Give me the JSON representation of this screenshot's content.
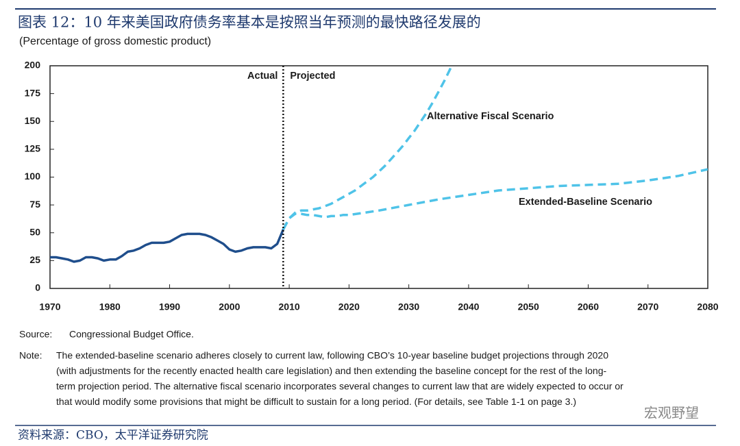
{
  "title": "图表 12：10 年来美国政府债务率基本是按照当年预测的最快路径发展的",
  "chart_data": {
    "type": "line",
    "subtitle": "(Percentage of gross domestic product)",
    "xlim": [
      1970,
      2080
    ],
    "ylim": [
      0,
      200
    ],
    "xticks": [
      1970,
      1980,
      1990,
      2000,
      2010,
      2020,
      2030,
      2040,
      2050,
      2060,
      2070,
      2080
    ],
    "yticks": [
      0,
      25,
      50,
      75,
      100,
      125,
      150,
      175,
      200
    ],
    "annotations": [
      "Actual",
      "Projected"
    ],
    "series": [
      {
        "color": "#1f4e8c",
        "dashed": false,
        "x": [
          1970,
          1971,
          1972,
          1973,
          1974,
          1975,
          1976,
          1977,
          1978,
          1979,
          1980,
          1981,
          1982,
          1983,
          1984,
          1985,
          1986,
          1987,
          1988,
          1989,
          1990,
          1991,
          1992,
          1993,
          1994,
          1995,
          1996,
          1997,
          1998,
          1999,
          2000,
          2001,
          2002,
          2003,
          2004,
          2005,
          2006,
          2007,
          2008,
          2009
        ],
        "values": [
          28,
          28,
          27,
          26,
          24,
          25,
          28,
          28,
          27,
          25,
          26,
          26,
          29,
          33,
          34,
          36,
          39,
          41,
          41,
          41,
          42,
          45,
          48,
          49,
          49,
          49,
          48,
          46,
          43,
          40,
          35,
          33,
          34,
          36,
          37,
          37,
          37,
          36,
          40,
          53
        ]
      },
      {
        "name": "Alternative Fiscal Scenario",
        "color": "#4fc3e8",
        "dashed": true,
        "x": [
          2009,
          2010,
          2011,
          2012,
          2013,
          2014,
          2015,
          2016,
          2017,
          2018,
          2019,
          2020,
          2021,
          2022,
          2023,
          2024,
          2025,
          2026,
          2027,
          2028,
          2029,
          2030,
          2031,
          2032,
          2033,
          2034,
          2035,
          2036,
          2037
        ],
        "values": [
          53,
          63,
          68,
          70,
          70,
          71,
          72,
          74,
          76,
          79,
          82,
          85,
          88,
          92,
          96,
          100,
          105,
          110,
          116,
          122,
          128,
          135,
          142,
          150,
          158,
          167,
          177,
          187,
          198
        ]
      },
      {
        "name": "Extended-Baseline Scenario",
        "color": "#4fc3e8",
        "dashed": true,
        "x": [
          2009,
          2010,
          2011,
          2012,
          2013,
          2014,
          2015,
          2016,
          2017,
          2018,
          2019,
          2020,
          2025,
          2030,
          2035,
          2040,
          2045,
          2050,
          2055,
          2060,
          2065,
          2070,
          2075,
          2080
        ],
        "values": [
          53,
          63,
          67,
          67,
          66,
          66,
          65,
          64,
          65,
          65,
          66,
          66,
          70,
          75,
          80,
          84,
          88,
          90,
          92,
          93,
          94,
          97,
          101,
          107
        ]
      }
    ]
  },
  "source": {
    "label": "Source:",
    "text": "Congressional Budget Office."
  },
  "note": {
    "label": "Note:",
    "lines": [
      "The extended-baseline scenario adheres closely to current law, following CBO’s 10-year baseline budget projections through 2020",
      "(with adjustments for the recently enacted health care legislation) and then extending the baseline concept for the rest of the long-",
      "term projection period. The alternative fiscal scenario incorporates several changes to current law that are widely expected to occur or",
      "that would modify some provisions that might be difficult to sustain for a long period. (For details, see Table 1-1 on page 3.)"
    ]
  },
  "footer": "资料来源：CBO，太平洋证券研究院",
  "watermark": "宏观野望"
}
